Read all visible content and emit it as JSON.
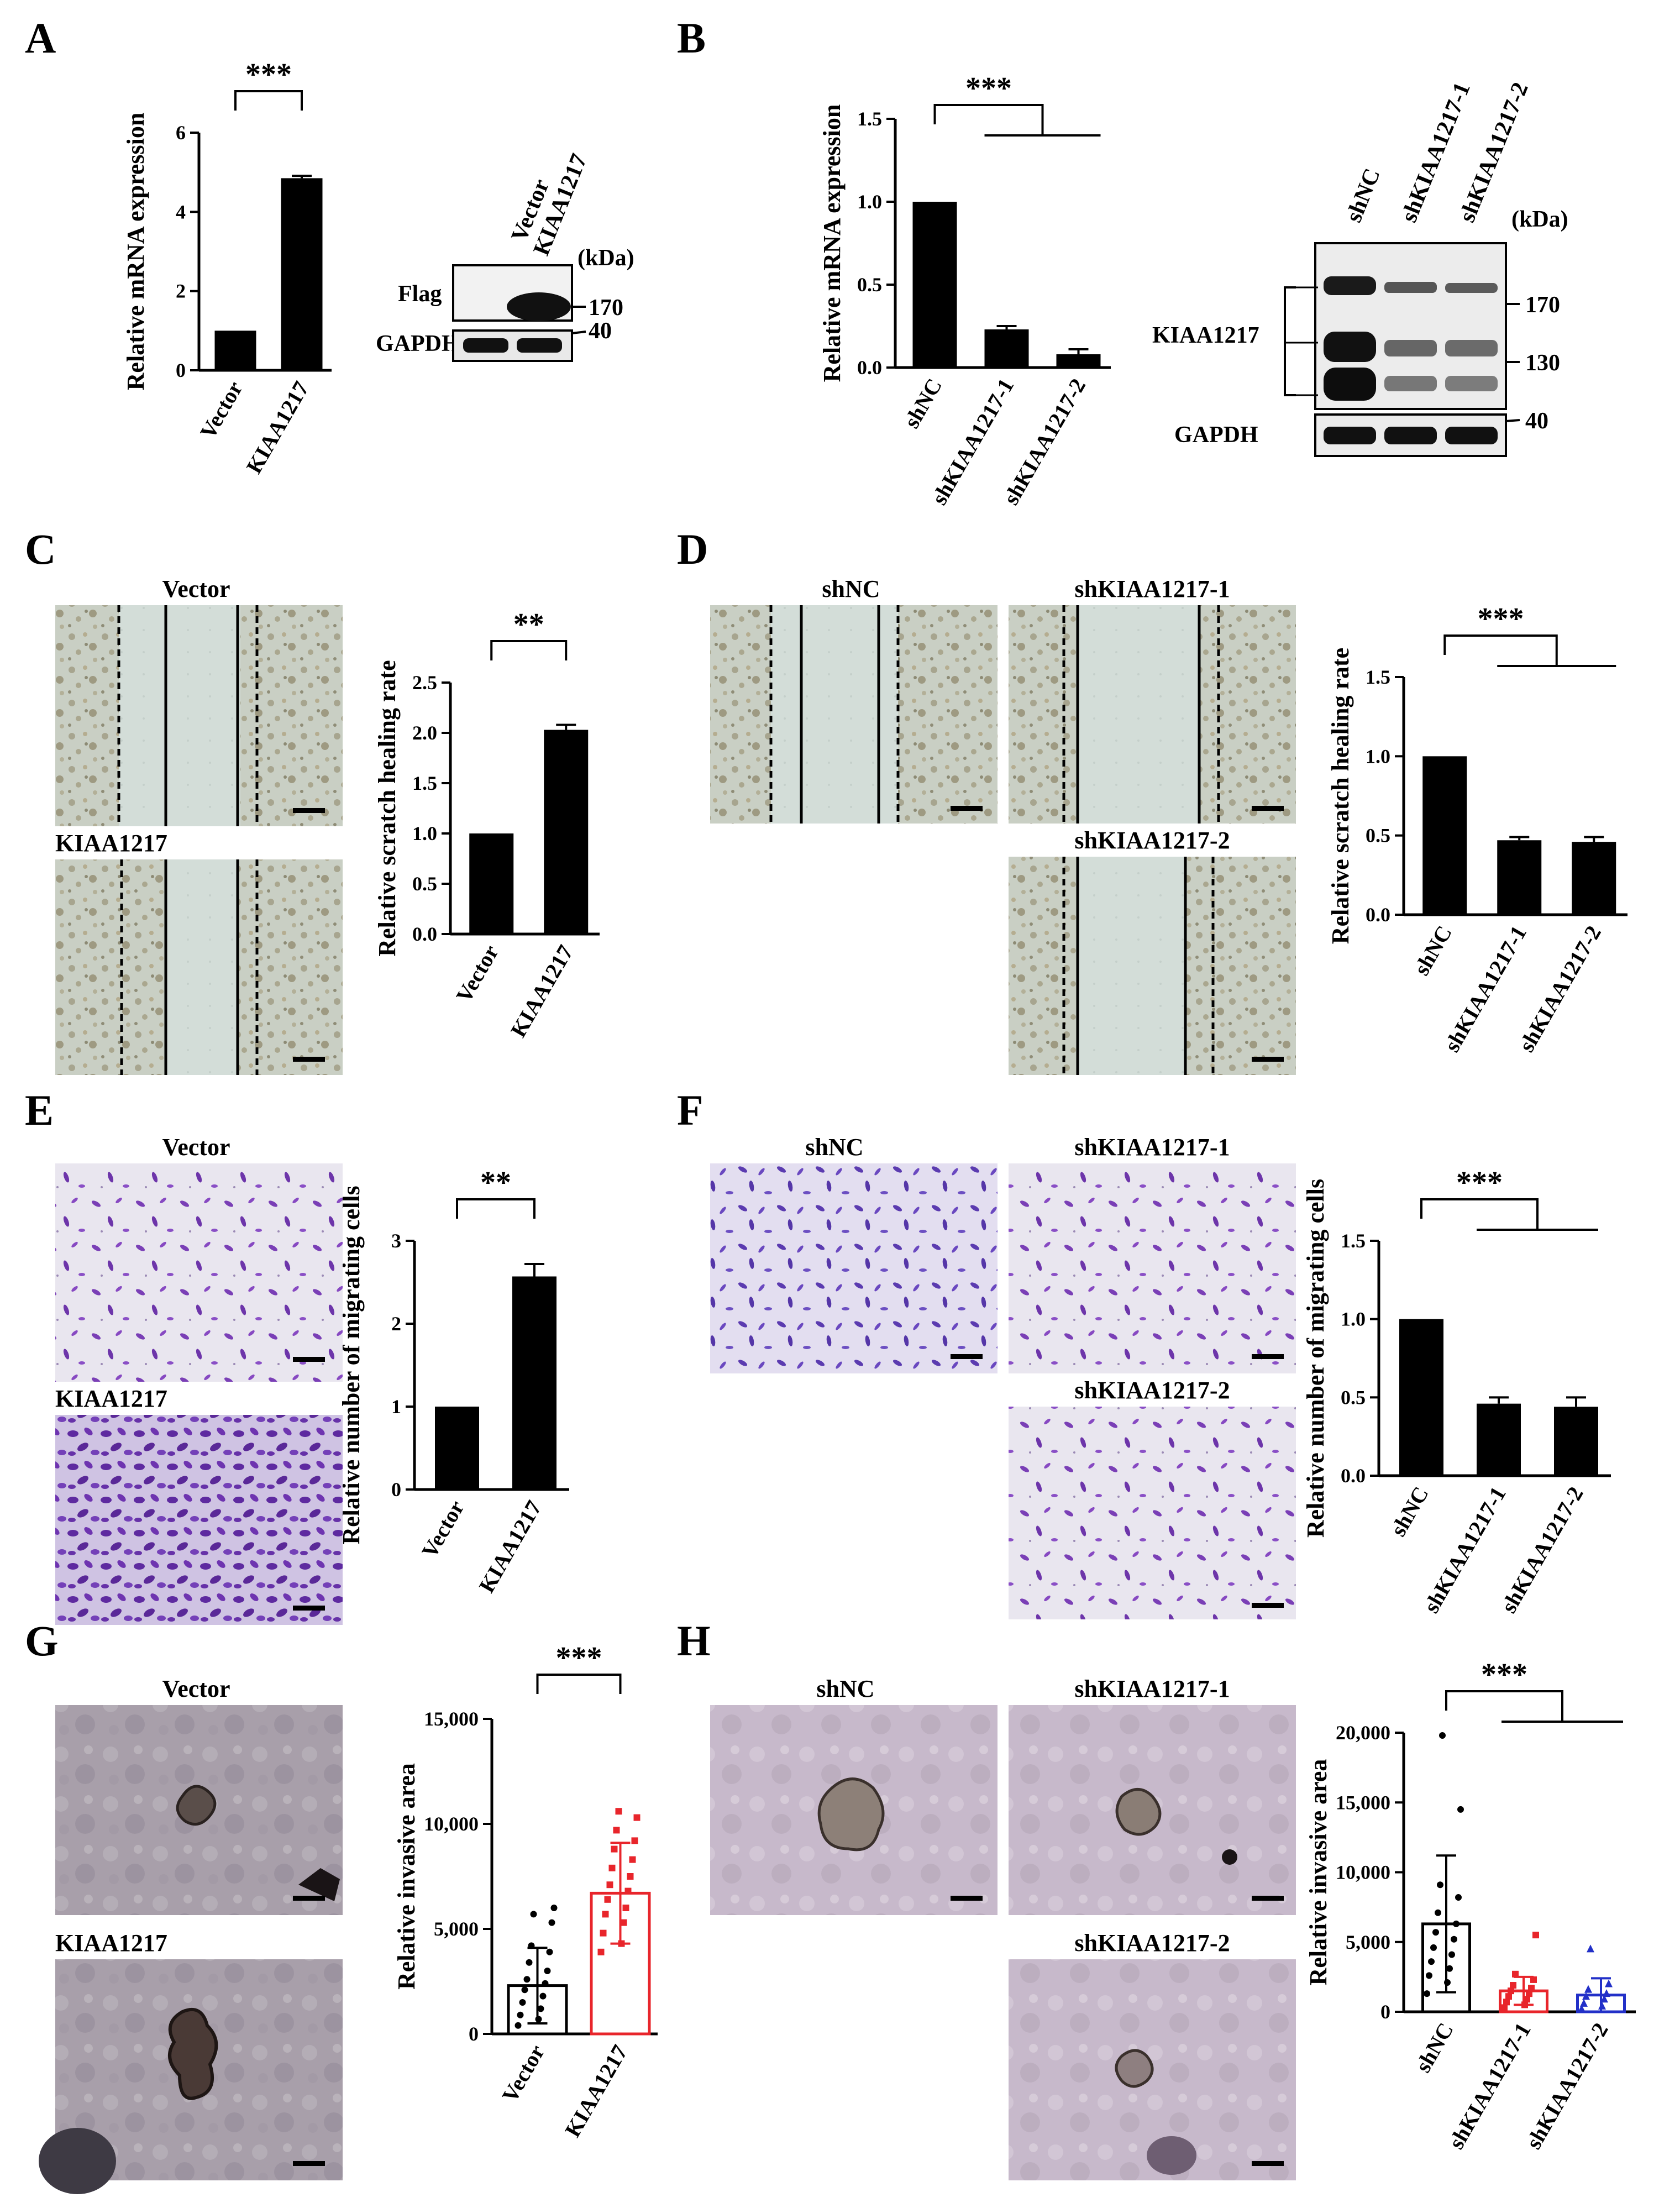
{
  "panels": {
    "A": {
      "label": "A"
    },
    "B": {
      "label": "B"
    },
    "C": {
      "label": "C"
    },
    "D": {
      "label": "D"
    },
    "E": {
      "label": "E"
    },
    "F": {
      "label": "F"
    },
    "G": {
      "label": "G"
    },
    "H": {
      "label": "H"
    }
  },
  "images": {
    "C": {
      "top": "Vector",
      "bottom": "KIAA1217"
    },
    "D": {
      "shnc": "shNC",
      "sh1": "shKIAA1217-1",
      "sh2": "shKIAA1217-2"
    },
    "E": {
      "top": "Vector",
      "bottom": "KIAA1217"
    },
    "F": {
      "shnc": "shNC",
      "sh1": "shKIAA1217-1",
      "sh2": "shKIAA1217-2"
    },
    "G": {
      "top": "Vector",
      "bottom": "KIAA1217"
    },
    "H": {
      "shnc": "shNC",
      "sh1": "shKIAA1217-1",
      "sh2": "shKIAA1217-2"
    }
  },
  "blots": {
    "A": {
      "lanes": [
        "Vector",
        "KIAA1217"
      ],
      "unit": "(kDa)",
      "rows": [
        "Flag",
        "GAPDH"
      ],
      "markers": [
        "170",
        "40"
      ]
    },
    "B": {
      "lanes": [
        "shNC",
        "shKIAA1217-1",
        "shKIAA1217-2"
      ],
      "unit": "(kDa)",
      "rows": [
        "KIAA1217",
        "GAPDH"
      ],
      "markers": [
        "170",
        "130",
        "40"
      ]
    }
  },
  "colors": {
    "red": "#e8252b",
    "blue": "#2230c8",
    "bar": "#000000"
  },
  "chart_data": [
    {
      "panel": "A",
      "type": "bar",
      "categories": [
        "Vector",
        "KIAA1217"
      ],
      "values": [
        1,
        4.85
      ],
      "errors": [
        0,
        0.06
      ],
      "ylabel": "Relative mRNA expression",
      "ylim": [
        0,
        6
      ],
      "yticks": [
        "0",
        "2",
        "4",
        "6"
      ],
      "significance": "***"
    },
    {
      "panel": "B",
      "type": "bar",
      "categories": [
        "shNC",
        "shKIAA1217-1",
        "shKIAA1217-2"
      ],
      "values": [
        1,
        0.23,
        0.08
      ],
      "errors": [
        0,
        0.02,
        0.03
      ],
      "ylabel": "Relative mRNA expression",
      "ylim": [
        0,
        1.5
      ],
      "yticks": [
        "0.0",
        "0.5",
        "1.0",
        "1.5"
      ],
      "significance": "***"
    },
    {
      "panel": "C",
      "type": "bar",
      "categories": [
        "Vector",
        "KIAA1217"
      ],
      "values": [
        1,
        2.03
      ],
      "errors": [
        0,
        0.05
      ],
      "ylabel": "Relative scratch healing rate",
      "ylim": [
        0,
        2.5
      ],
      "yticks": [
        "0.0",
        "0.5",
        "1.0",
        "1.5",
        "2.0",
        "2.5"
      ],
      "significance": "**"
    },
    {
      "panel": "D",
      "type": "bar",
      "categories": [
        "shNC",
        "shKIAA1217-1",
        "shKIAA1217-2"
      ],
      "values": [
        1,
        0.47,
        0.46
      ],
      "errors": [
        0,
        0.02,
        0.03
      ],
      "ylabel": "Relative scratch healing rate",
      "ylim": [
        0,
        1.5
      ],
      "yticks": [
        "0.0",
        "0.5",
        "1.0",
        "1.5"
      ],
      "significance": "***"
    },
    {
      "panel": "E",
      "type": "bar",
      "categories": [
        "Vector",
        "KIAA1217"
      ],
      "values": [
        1,
        2.57
      ],
      "errors": [
        0,
        0.15
      ],
      "ylabel": "Relative number of migrating cells",
      "ylim": [
        0,
        3
      ],
      "yticks": [
        "0",
        "1",
        "2",
        "3"
      ],
      "significance": "**"
    },
    {
      "panel": "F",
      "type": "bar",
      "categories": [
        "shNC",
        "shKIAA1217-1",
        "shKIAA1217-2"
      ],
      "values": [
        1,
        0.46,
        0.44
      ],
      "errors": [
        0,
        0.04,
        0.06
      ],
      "ylabel": "Relative number of migrating cells",
      "ylim": [
        0,
        1.5
      ],
      "yticks": [
        "0.0",
        "0.5",
        "1.0",
        "1.5"
      ],
      "significance": "***"
    },
    {
      "panel": "G",
      "type": "bar",
      "categories": [
        "Vector",
        "KIAA1217"
      ],
      "values": [
        2300,
        6700
      ],
      "errors": [
        1800,
        2400
      ],
      "ylabel": "Relative invasive area",
      "ylim": [
        0,
        15000
      ],
      "yticks": [
        "0",
        "5,000",
        "10,000",
        "15,000"
      ],
      "significance": "***",
      "points": [
        [
          400,
          700,
          900,
          1200,
          1500,
          1800,
          2100,
          2400,
          2600,
          3000,
          3400,
          3900,
          4200,
          5300,
          5700,
          6000
        ],
        [
          3900,
          4300,
          4800,
          5300,
          5700,
          6000,
          6400,
          6800,
          7100,
          7500,
          7900,
          8300,
          8800,
          9200,
          9700,
          10300,
          10600
        ]
      ]
    },
    {
      "panel": "H",
      "type": "bar",
      "categories": [
        "shNC",
        "shKIAA1217-1",
        "shKIAA1217-2"
      ],
      "values": [
        6300,
        1500,
        1200
      ],
      "errors": [
        4900,
        1000,
        1200
      ],
      "ylabel": "Relative invasive area",
      "ylim": [
        0,
        20000
      ],
      "yticks": [
        "0",
        "5,000",
        "10,000",
        "15,000",
        "20,000"
      ],
      "significance": "***",
      "points": [
        [
          1300,
          2100,
          2600,
          3100,
          3600,
          4100,
          4600,
          5200,
          5700,
          6300,
          7100,
          8200,
          9100,
          14500,
          19800
        ],
        [
          300,
          500,
          700,
          900,
          1100,
          1300,
          1500,
          1700,
          1900,
          2300,
          2700,
          5500
        ],
        [
          200,
          400,
          600,
          900,
          1100,
          1300,
          1600,
          2000,
          4500
        ]
      ]
    }
  ]
}
